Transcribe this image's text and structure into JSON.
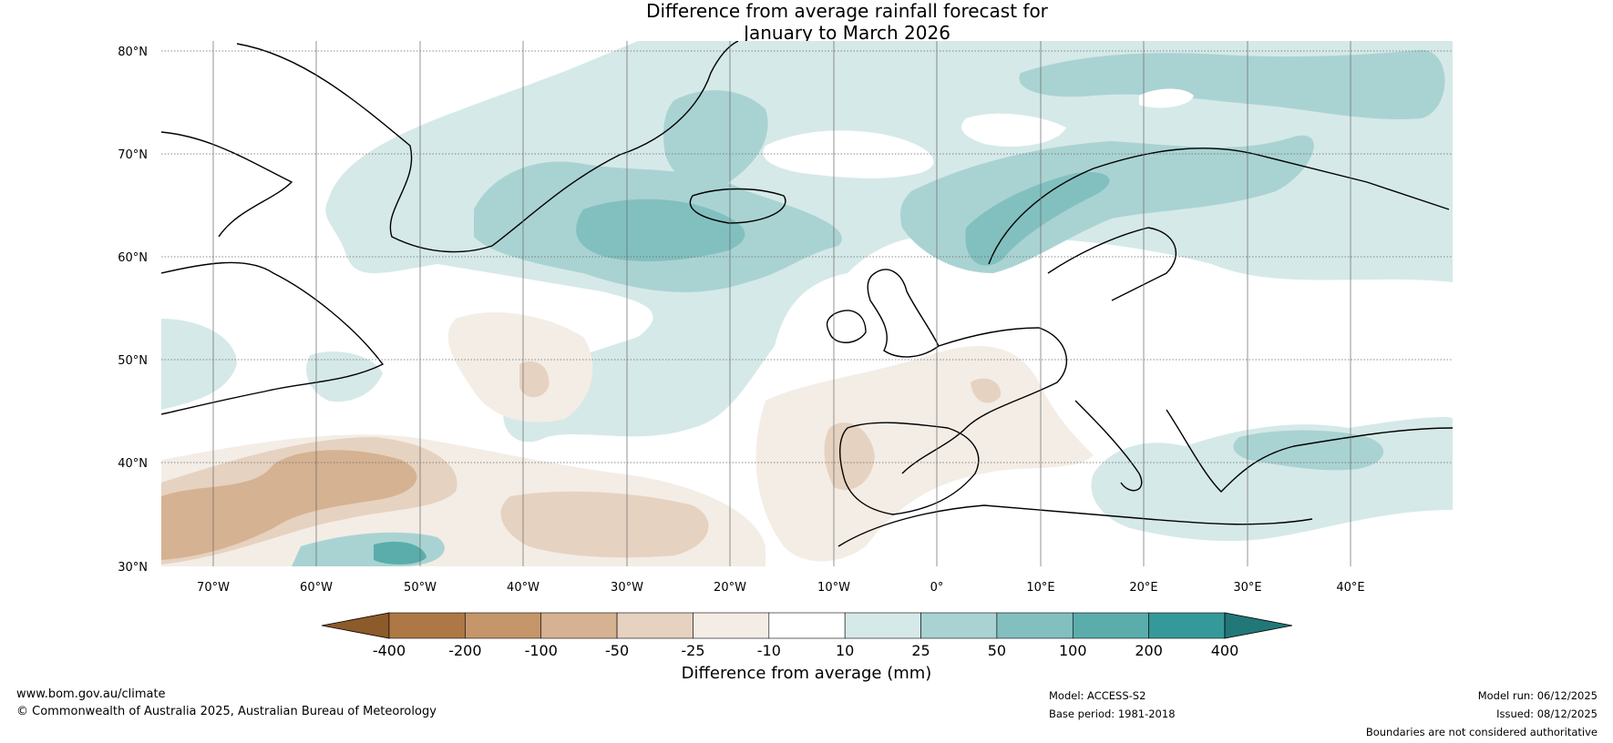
{
  "title": {
    "line1": "Difference from average rainfall forecast for",
    "line2": "January to March 2026"
  },
  "map": {
    "region": "North Atlantic and Europe",
    "lat_labels": [
      "80°N",
      "70°N",
      "60°N",
      "50°N",
      "40°N",
      "30°N"
    ],
    "lon_labels": [
      "70°W",
      "60°W",
      "50°W",
      "40°W",
      "30°W",
      "20°W",
      "10°W",
      "0°",
      "10°E",
      "20°E",
      "30°E",
      "40°E"
    ]
  },
  "colorbar": {
    "ticks": [
      "-400",
      "-200",
      "-100",
      "-50",
      "-25",
      "-10",
      "10",
      "25",
      "50",
      "100",
      "200",
      "400"
    ],
    "colors": [
      "#8c5a2b",
      "#ad7845",
      "#c4966a",
      "#d5b291",
      "#e6d2c0",
      "#f3ede6",
      "#ffffff",
      "#d5e9e8",
      "#a9d3d2",
      "#82c0bf",
      "#5aadab",
      "#35999a",
      "#227777"
    ],
    "label": "Difference from average (mm)"
  },
  "footer": {
    "website": "www.bom.gov.au/climate",
    "copyright": "© Commonwealth of Australia 2025, Australian Bureau of Meteorology",
    "model": "Model: ACCESS-S2",
    "base_period": "Base period: 1981-2018",
    "model_run": "Model run: 06/12/2025",
    "issued": "Issued: 08/12/2025",
    "disclaimer": "Boundaries are not considered authoritative"
  }
}
